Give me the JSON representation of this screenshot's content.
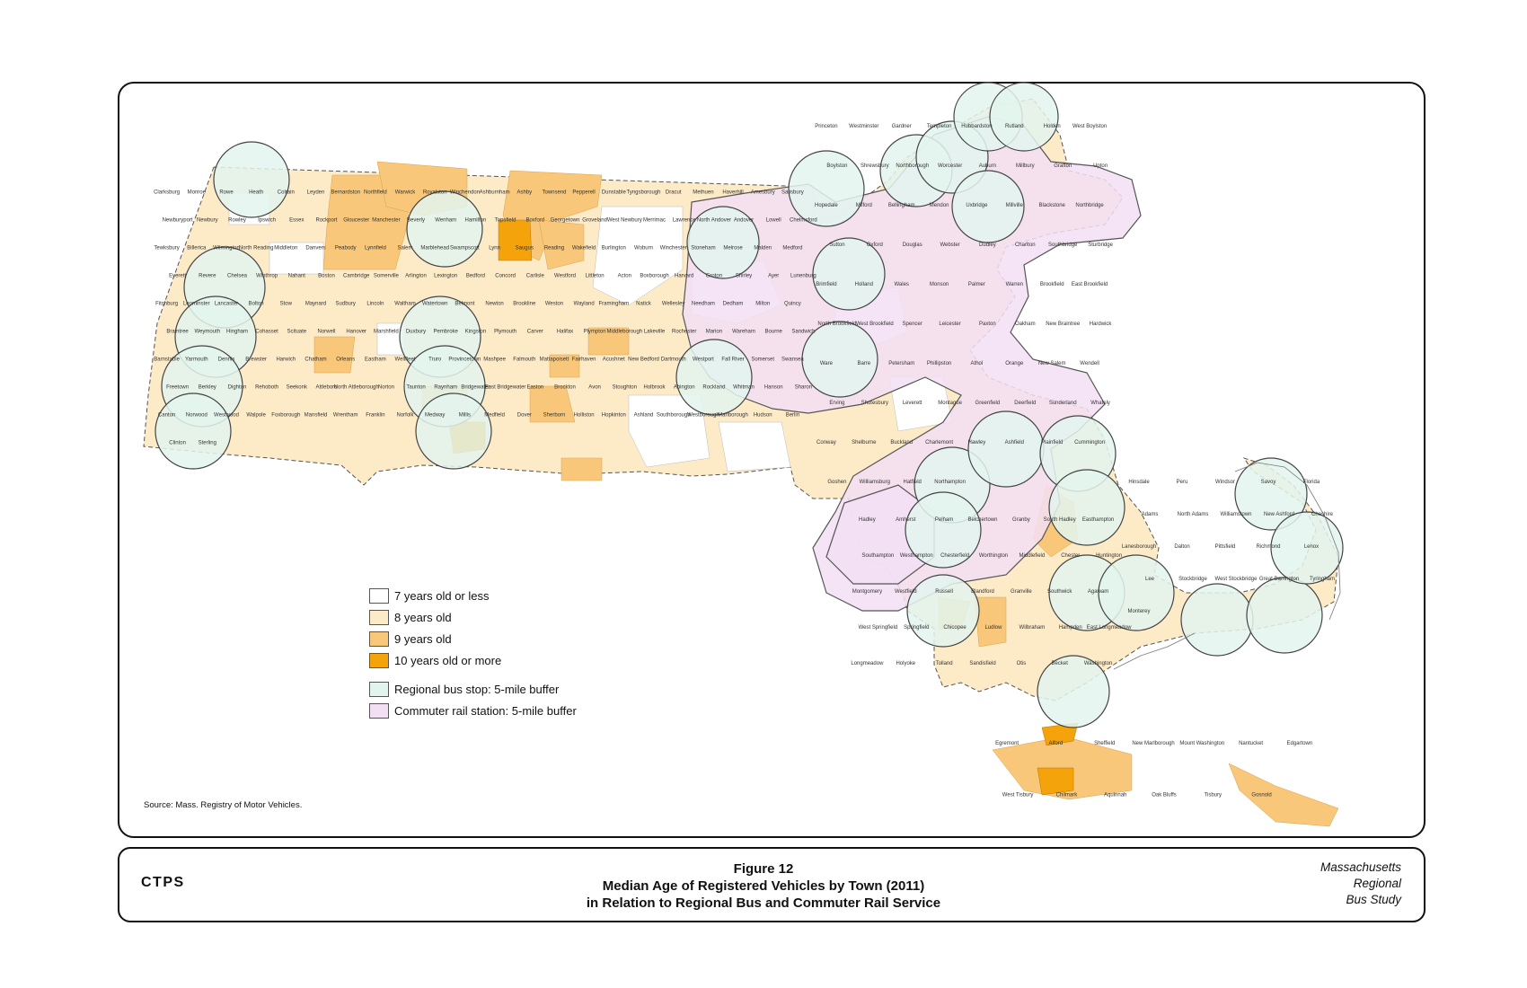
{
  "legend": {
    "items": [
      {
        "label": "7 years old or less",
        "color": "#ffffff"
      },
      {
        "label": "8 years old",
        "color": "#fdebc8"
      },
      {
        "label": "9 years old",
        "color": "#f8c77a"
      },
      {
        "label": "10 years old or more",
        "color": "#f5a30a"
      },
      {
        "label": "Regional bus stop: 5-mile buffer",
        "color": "#e3f4ef"
      },
      {
        "label": "Commuter rail station: 5-mile buffer",
        "color": "#f3dff4"
      }
    ]
  },
  "source": "Source: Mass. Registry of Motor Vehicles.",
  "footer": {
    "logo": "CTPS",
    "figure_number": "Figure 12",
    "title_line1": "Median Age of Registered Vehicles by Town (2011)",
    "title_line2": "in Relation to Regional Bus and Commuter Rail Service",
    "study_line1": "Massachusetts",
    "study_line2": "Regional",
    "study_line3": "Bus Study"
  },
  "towns": [
    "Clarksburg",
    "Monroe",
    "Rowe",
    "Heath",
    "Colrain",
    "Leyden",
    "Bernardston",
    "Northfield",
    "Warwick",
    "Royalston",
    "Winchendon",
    "Ashburnham",
    "Ashby",
    "Townsend",
    "Pepperell",
    "Dunstable",
    "Tyngsborough",
    "Dracut",
    "Methuen",
    "Haverhill",
    "Amesbury",
    "Salisbury",
    "Newburyport",
    "Newbury",
    "Rowley",
    "Ipswich",
    "Essex",
    "Rockport",
    "Gloucester",
    "Manchester",
    "Beverly",
    "Wenham",
    "Hamilton",
    "Topsfield",
    "Boxford",
    "Georgetown",
    "Groveland",
    "West Newbury",
    "Merrimac",
    "Lawrence",
    "North Andover",
    "Andover",
    "Lowell",
    "Chelmsford",
    "Tewksbury",
    "Billerica",
    "Wilmington",
    "North Reading",
    "Middleton",
    "Danvers",
    "Peabody",
    "Lynnfield",
    "Salem",
    "Marblehead",
    "Swampscott",
    "Lynn",
    "Saugus",
    "Reading",
    "Wakefield",
    "Burlington",
    "Woburn",
    "Winchester",
    "Stoneham",
    "Melrose",
    "Malden",
    "Medford",
    "Everett",
    "Revere",
    "Chelsea",
    "Winthrop",
    "Nahant",
    "Boston",
    "Cambridge",
    "Somerville",
    "Arlington",
    "Lexington",
    "Bedford",
    "Concord",
    "Carlisle",
    "Westford",
    "Littleton",
    "Acton",
    "Boxborough",
    "Harvard",
    "Groton",
    "Shirley",
    "Ayer",
    "Lunenburg",
    "Fitchburg",
    "Leominster",
    "Lancaster",
    "Bolton",
    "Stow",
    "Maynard",
    "Sudbury",
    "Lincoln",
    "Waltham",
    "Watertown",
    "Belmont",
    "Newton",
    "Brookline",
    "Weston",
    "Wayland",
    "Framingham",
    "Natick",
    "Wellesley",
    "Needham",
    "Dedham",
    "Milton",
    "Quincy",
    "Braintree",
    "Weymouth",
    "Hingham",
    "Cohasset",
    "Scituate",
    "Norwell",
    "Hanover",
    "Marshfield",
    "Duxbury",
    "Pembroke",
    "Kingston",
    "Plymouth",
    "Carver",
    "Halifax",
    "Plympton",
    "Middleborough",
    "Lakeville",
    "Rochester",
    "Marion",
    "Wareham",
    "Bourne",
    "Sandwich",
    "Barnstable",
    "Yarmouth",
    "Dennis",
    "Brewster",
    "Harwich",
    "Chatham",
    "Orleans",
    "Eastham",
    "Wellfleet",
    "Truro",
    "Provincetown",
    "Mashpee",
    "Falmouth",
    "Mattapoisett",
    "Fairhaven",
    "Acushnet",
    "New Bedford",
    "Dartmouth",
    "Westport",
    "Fall River",
    "Somerset",
    "Swansea",
    "Freetown",
    "Berkley",
    "Dighton",
    "Rehoboth",
    "Seekonk",
    "Attleboro",
    "North Attleborough",
    "Norton",
    "Taunton",
    "Raynham",
    "Bridgewater",
    "East Bridgewater",
    "Easton",
    "Brockton",
    "Avon",
    "Stoughton",
    "Holbrook",
    "Abington",
    "Rockland",
    "Whitman",
    "Hanson",
    "Sharon",
    "Canton",
    "Norwood",
    "Westwood",
    "Walpole",
    "Foxborough",
    "Mansfield",
    "Wrentham",
    "Franklin",
    "Norfolk",
    "Medway",
    "Millis",
    "Medfield",
    "Dover",
    "Sherborn",
    "Holliston",
    "Hopkinton",
    "Ashland",
    "Southborough",
    "Westborough",
    "Marlborough",
    "Hudson",
    "Berlin",
    "Clinton",
    "Sterling",
    "Princeton",
    "Westminster",
    "Gardner",
    "Templeton",
    "Hubbardston",
    "Rutland",
    "Holden",
    "West Boylston",
    "Boylston",
    "Shrewsbury",
    "Northborough",
    "Worcester",
    "Auburn",
    "Millbury",
    "Grafton",
    "Upton",
    "Hopedale",
    "Milford",
    "Bellingham",
    "Mendon",
    "Uxbridge",
    "Millville",
    "Blackstone",
    "Northbridge",
    "Sutton",
    "Oxford",
    "Douglas",
    "Webster",
    "Dudley",
    "Charlton",
    "Southbridge",
    "Sturbridge",
    "Brimfield",
    "Holland",
    "Wales",
    "Monson",
    "Palmer",
    "Warren",
    "Brookfield",
    "East Brookfield",
    "North Brookfield",
    "West Brookfield",
    "Spencer",
    "Leicester",
    "Paxton",
    "Oakham",
    "New Braintree",
    "Hardwick",
    "Ware",
    "Barre",
    "Petersham",
    "Phillipston",
    "Athol",
    "Orange",
    "New Salem",
    "Wendell",
    "Erving",
    "Shutesbury",
    "Leverett",
    "Montague",
    "Greenfield",
    "Deerfield",
    "Sunderland",
    "Whately",
    "Conway",
    "Shelburne",
    "Buckland",
    "Charlemont",
    "Hawley",
    "Ashfield",
    "Plainfield",
    "Cummington",
    "Goshen",
    "Williamsburg",
    "Hatfield",
    "Northampton",
    "Hadley",
    "Amherst",
    "Pelham",
    "Belchertown",
    "Granby",
    "South Hadley",
    "Easthampton",
    "Southampton",
    "Westhampton",
    "Chesterfield",
    "Worthington",
    "Middlefield",
    "Chester",
    "Huntington",
    "Montgomery",
    "Westfield",
    "Russell",
    "Blandford",
    "Granville",
    "Southwick",
    "Agawam",
    "West Springfield",
    "Springfield",
    "Chicopee",
    "Ludlow",
    "Wilbraham",
    "Hampden",
    "East Longmeadow",
    "Longmeadow",
    "Holyoke",
    "Tolland",
    "Sandisfield",
    "Otis",
    "Becket",
    "Washington",
    "Hinsdale",
    "Peru",
    "Windsor",
    "Savoy",
    "Florida",
    "Adams",
    "North Adams",
    "Williamstown",
    "New Ashford",
    "Cheshire",
    "Lanesborough",
    "Dalton",
    "Pittsfield",
    "Richmond",
    "Lenox",
    "Lee",
    "Stockbridge",
    "West Stockbridge",
    "Great Barrington",
    "Tyringham",
    "Monterey",
    "Egremont",
    "Alford",
    "Sheffield",
    "New Marlborough",
    "Mount Washington",
    "Nantucket",
    "Edgartown",
    "West Tisbury",
    "Chilmark",
    "Aquinnah",
    "Oak Bluffs",
    "Tisbury",
    "Gosnold"
  ]
}
